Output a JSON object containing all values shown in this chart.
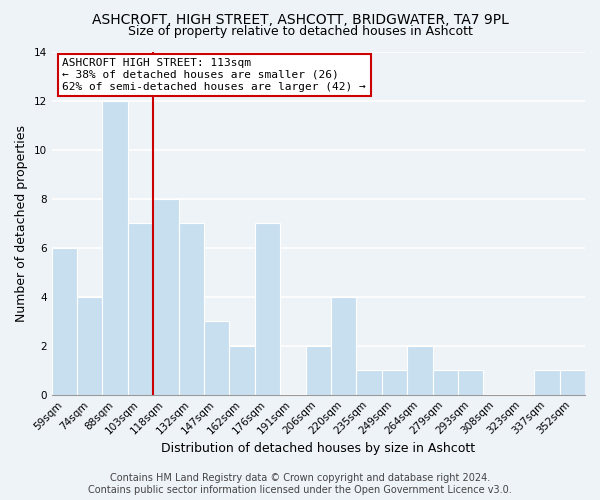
{
  "title": "ASHCROFT, HIGH STREET, ASHCOTT, BRIDGWATER, TA7 9PL",
  "subtitle": "Size of property relative to detached houses in Ashcott",
  "xlabel": "Distribution of detached houses by size in Ashcott",
  "ylabel": "Number of detached properties",
  "bar_color": "#c8dff0",
  "bar_edge_color": "#d0e6f5",
  "categories": [
    "59sqm",
    "74sqm",
    "88sqm",
    "103sqm",
    "118sqm",
    "132sqm",
    "147sqm",
    "162sqm",
    "176sqm",
    "191sqm",
    "206sqm",
    "220sqm",
    "235sqm",
    "249sqm",
    "264sqm",
    "279sqm",
    "293sqm",
    "308sqm",
    "323sqm",
    "337sqm",
    "352sqm"
  ],
  "values": [
    6,
    4,
    12,
    7,
    8,
    7,
    3,
    2,
    7,
    0,
    2,
    4,
    1,
    1,
    2,
    1,
    1,
    0,
    0,
    1,
    1
  ],
  "ylim": [
    0,
    14
  ],
  "yticks": [
    0,
    2,
    4,
    6,
    8,
    10,
    12,
    14
  ],
  "vline_x_index": 4,
  "vline_color": "#cc0000",
  "annotation_title": "ASHCROFT HIGH STREET: 113sqm",
  "annotation_line1": "← 38% of detached houses are smaller (26)",
  "annotation_line2": "62% of semi-detached houses are larger (42) →",
  "annotation_box_color": "#ffffff",
  "annotation_box_edge": "#cc0000",
  "footer1": "Contains HM Land Registry data © Crown copyright and database right 2024.",
  "footer2": "Contains public sector information licensed under the Open Government Licence v3.0.",
  "background_color": "#eef3f8",
  "plot_background_color": "#eef3f8",
  "grid_color": "#ffffff",
  "title_fontsize": 10,
  "subtitle_fontsize": 9,
  "axis_label_fontsize": 9,
  "tick_fontsize": 7.5,
  "footer_fontsize": 7,
  "annotation_fontsize": 8
}
